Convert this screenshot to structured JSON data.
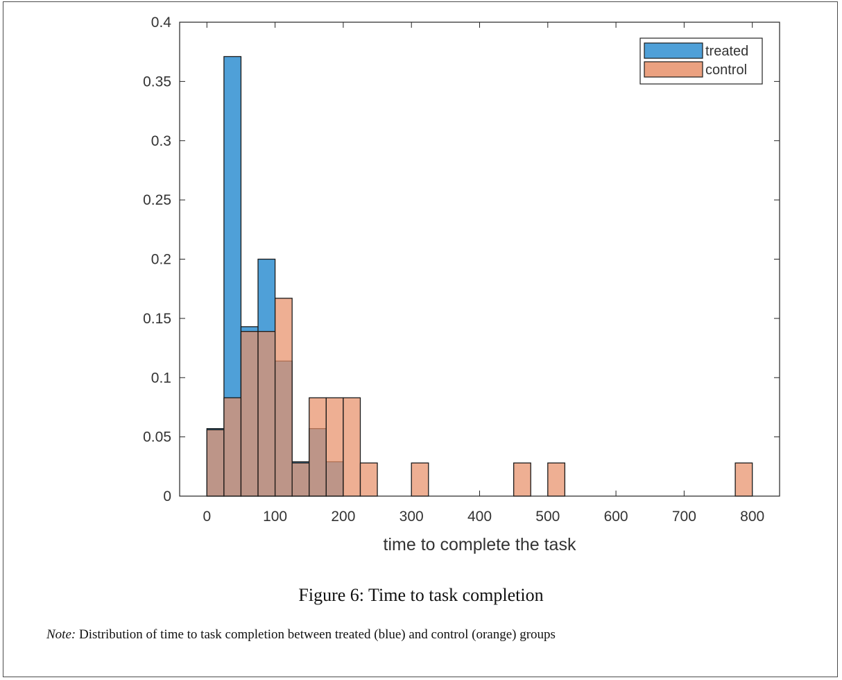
{
  "chart_data": {
    "type": "bar",
    "subtype": "overlapping-histogram",
    "xlabel": "time to complete the task",
    "ylabel": "",
    "xlim": [
      -40,
      840
    ],
    "ylim": [
      0,
      0.4
    ],
    "xticks": [
      0,
      100,
      200,
      300,
      400,
      500,
      600,
      700,
      800
    ],
    "yticks": [
      0,
      0.05,
      0.1,
      0.15,
      0.2,
      0.25,
      0.3,
      0.35,
      0.4
    ],
    "bin_width": 25,
    "legend_position": "top-right",
    "grid": false,
    "series": [
      {
        "name": "treated",
        "color": "#4fa0d8",
        "bins": [
          {
            "x0": 0,
            "x1": 25,
            "value": 0.057
          },
          {
            "x0": 25,
            "x1": 50,
            "value": 0.371
          },
          {
            "x0": 50,
            "x1": 75,
            "value": 0.143
          },
          {
            "x0": 75,
            "x1": 100,
            "value": 0.2
          },
          {
            "x0": 100,
            "x1": 125,
            "value": 0.114
          },
          {
            "x0": 125,
            "x1": 150,
            "value": 0.029
          },
          {
            "x0": 150,
            "x1": 175,
            "value": 0.057
          },
          {
            "x0": 175,
            "x1": 200,
            "value": 0.029
          }
        ]
      },
      {
        "name": "control",
        "color": "#e8906a",
        "bins": [
          {
            "x0": 0,
            "x1": 25,
            "value": 0.056
          },
          {
            "x0": 25,
            "x1": 50,
            "value": 0.083
          },
          {
            "x0": 50,
            "x1": 75,
            "value": 0.139
          },
          {
            "x0": 75,
            "x1": 100,
            "value": 0.139
          },
          {
            "x0": 100,
            "x1": 125,
            "value": 0.167
          },
          {
            "x0": 125,
            "x1": 150,
            "value": 0.028
          },
          {
            "x0": 150,
            "x1": 175,
            "value": 0.083
          },
          {
            "x0": 175,
            "x1": 200,
            "value": 0.083
          },
          {
            "x0": 200,
            "x1": 225,
            "value": 0.083
          },
          {
            "x0": 225,
            "x1": 250,
            "value": 0.028
          },
          {
            "x0": 300,
            "x1": 325,
            "value": 0.028
          },
          {
            "x0": 450,
            "x1": 475,
            "value": 0.028
          },
          {
            "x0": 500,
            "x1": 525,
            "value": 0.028
          },
          {
            "x0": 775,
            "x1": 800,
            "value": 0.028
          }
        ]
      }
    ]
  },
  "figure": {
    "caption": "Figure 6: Time to task completion",
    "note_label": "Note:",
    "note_text": " Distribution of time to task completion between treated (blue) and control (orange) groups"
  }
}
